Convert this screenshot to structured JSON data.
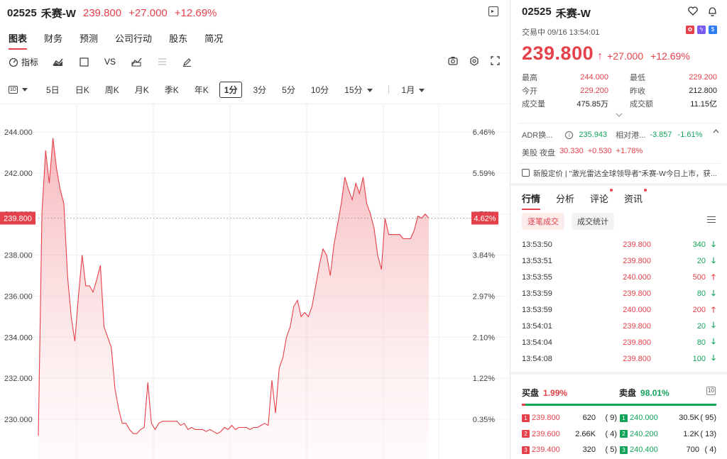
{
  "header": {
    "code": "02525",
    "name": "禾赛-W",
    "price": "239.800",
    "change": "+27.000",
    "pct": "+12.69%"
  },
  "main_tabs": [
    "图表",
    "财务",
    "预测",
    "公司行动",
    "股东",
    "简况"
  ],
  "toolbar": {
    "indicator_label": "指标",
    "vs_label": "VS"
  },
  "periods": {
    "kline_label": "1D",
    "items": [
      "5日",
      "日K",
      "周K",
      "月K",
      "季K",
      "年K"
    ],
    "active": "1分",
    "minutes": [
      "3分",
      "5分",
      "10分",
      "15分"
    ],
    "range": "1月"
  },
  "chart_data": {
    "type": "area",
    "title": "",
    "xlabel": "",
    "ylabel": "",
    "ylim": [
      229.2,
      245.0
    ],
    "y_ticks": [
      "244.000",
      "242.000",
      "240.000",
      "238.000",
      "236.000",
      "234.000",
      "232.000",
      "230.000"
    ],
    "y_tick_values": [
      244,
      242,
      240,
      238,
      236,
      234,
      232,
      230
    ],
    "pct_ticks": [
      "6.46%",
      "5.59%",
      "4.72%",
      "3.84%",
      "2.97%",
      "2.10%",
      "1.22%",
      "0.35%"
    ],
    "prev_close_ref": 239.8,
    "current_price_label": "239.800",
    "current_pct_label": "4.62%",
    "grid": true,
    "series": [
      {
        "values": [
          229.2,
          240.1,
          243.1,
          241.5,
          243.7,
          242.2,
          241.2,
          240.5,
          237.0,
          235.0,
          233.8,
          236.0,
          238.0,
          236.5,
          236.5,
          236.2,
          236.8,
          237.5,
          234.5,
          234.0,
          233.5,
          231.5,
          230.5,
          229.8,
          229.8,
          229.5,
          229.3,
          229.3,
          229.5,
          229.6,
          231.8,
          229.8,
          229.5,
          229.8,
          229.9,
          229.9,
          229.9,
          229.9,
          229.9,
          229.7,
          229.8,
          229.5,
          229.6,
          229.5,
          229.5,
          229.5,
          229.4,
          229.5,
          229.4,
          229.3,
          229.4,
          229.6,
          229.5,
          229.7,
          229.5,
          229.6,
          229.6,
          229.6,
          229.5,
          229.6,
          229.6,
          229.7,
          229.8,
          229.7,
          231.9,
          230.3,
          232.5,
          233.0,
          234.0,
          234.5,
          235.5,
          235.8,
          235.0,
          235.2,
          235.0,
          235.5,
          236.5,
          237.5,
          238.3,
          238.0,
          237.0,
          238.5,
          239.5,
          240.5,
          241.8,
          241.2,
          240.7,
          241.5,
          241.0,
          241.8,
          240.5,
          240.0,
          239.3,
          238.0,
          237.3,
          239.8,
          239.0,
          239.0,
          239.0,
          239.0,
          238.8,
          238.8,
          238.8,
          239.2,
          239.9,
          239.8,
          240.0,
          239.8
        ]
      }
    ]
  },
  "quote": {
    "title_code": "02525",
    "title_name": "禾赛-W",
    "status": "交易中 09/16 13:54:01",
    "price": "239.800",
    "arrow": "↑",
    "change": "+27.000",
    "pct": "+12.69%",
    "stats": [
      {
        "k": "最高",
        "v": "244.000",
        "cls": "red",
        "k2": "最低",
        "v2": "229.200",
        "cls2": "red"
      },
      {
        "k": "今开",
        "v": "229.200",
        "cls": "red",
        "k2": "昨收",
        "v2": "212.800",
        "cls2": ""
      },
      {
        "k": "成交量",
        "v": "475.85万",
        "cls": "",
        "k2": "成交额",
        "v2": "11.15亿",
        "cls2": ""
      }
    ],
    "adr_label": "ADR换...",
    "adr_value": "235.943",
    "adr_rel_label": "相对港...",
    "adr_rel_value": "-3.857",
    "adr_rel_pct": "-1.61%",
    "us_label": "美股 夜盘",
    "us_price": "30.330",
    "us_change": "+0.530",
    "us_pct": "+1.78%",
    "news": "新股定价 | \"激光雷达全球领导者\"禾赛-W今日上市，获..."
  },
  "right_tabs": [
    "行情",
    "分析",
    "评论",
    "资讯"
  ],
  "sub_tabs": [
    "逐笔成交",
    "成交统计"
  ],
  "ticks": [
    {
      "time": "13:53:50",
      "price": "239.800",
      "qty": "340",
      "dir": "down"
    },
    {
      "time": "13:53:51",
      "price": "239.800",
      "qty": "20",
      "dir": "down"
    },
    {
      "time": "13:53:55",
      "price": "240.000",
      "qty": "500",
      "dir": "up"
    },
    {
      "time": "13:53:59",
      "price": "239.800",
      "qty": "80",
      "dir": "down"
    },
    {
      "time": "13:53:59",
      "price": "240.000",
      "qty": "200",
      "dir": "up"
    },
    {
      "time": "13:54:01",
      "price": "239.800",
      "qty": "20",
      "dir": "down"
    },
    {
      "time": "13:54:04",
      "price": "239.800",
      "qty": "80",
      "dir": "down"
    },
    {
      "time": "13:54:08",
      "price": "239.800",
      "qty": "100",
      "dir": "down"
    }
  ],
  "book": {
    "bid_label": "买盘",
    "bid_pct": "1.99%",
    "ask_label": "卖盘",
    "ask_pct": "98.01%",
    "levels_label": "10",
    "bid_ratio": 0.0199,
    "rows": [
      {
        "lvl": "1",
        "bp": "239.800",
        "bv": "620",
        "bo": "( 9)",
        "ap": "240.000",
        "av": "30.5K",
        "ao": "( 95)"
      },
      {
        "lvl": "2",
        "bp": "239.600",
        "bv": "2.66K",
        "bo": "( 4)",
        "ap": "240.200",
        "av": "1.2K",
        "ao": "( 13)"
      },
      {
        "lvl": "3",
        "bp": "239.400",
        "bv": "320",
        "bo": "( 5)",
        "ap": "240.400",
        "av": "700",
        "ao": "( 4)"
      }
    ]
  },
  "colors": {
    "up": "#e5414b",
    "down": "#13a35a"
  }
}
